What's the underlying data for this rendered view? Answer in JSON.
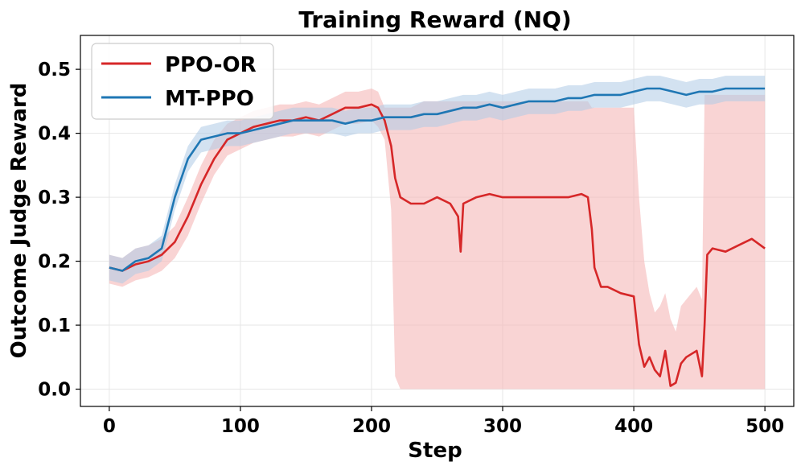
{
  "chart_data": {
    "type": "line",
    "title": "Training Reward (NQ)",
    "xlabel": "Step",
    "ylabel": "Outcome Judge Reward",
    "xlim": [
      -22,
      522
    ],
    "ylim": [
      -0.027,
      0.553
    ],
    "xticks": [
      0,
      100,
      200,
      300,
      400,
      500
    ],
    "yticks": [
      0.0,
      0.1,
      0.2,
      0.3,
      0.4,
      0.5
    ],
    "xtick_labels": [
      "0",
      "100",
      "200",
      "300",
      "400",
      "500"
    ],
    "ytick_labels": [
      "0.0",
      "0.1",
      "0.2",
      "0.3",
      "0.4",
      "0.5"
    ],
    "grid": true,
    "legend_position": "top-left",
    "series": [
      {
        "name": "PPO-OR",
        "color": "#d62728",
        "band_color": "#f5b8b8",
        "x": [
          0,
          10,
          20,
          30,
          40,
          50,
          60,
          70,
          80,
          90,
          100,
          110,
          120,
          130,
          140,
          150,
          160,
          170,
          180,
          190,
          200,
          205,
          210,
          215,
          218,
          222,
          230,
          240,
          250,
          260,
          266,
          268,
          270,
          280,
          290,
          300,
          310,
          320,
          330,
          340,
          350,
          360,
          365,
          368,
          370,
          375,
          380,
          390,
          400,
          404,
          408,
          412,
          416,
          420,
          424,
          428,
          432,
          436,
          440,
          444,
          448,
          452,
          454,
          456,
          460,
          470,
          480,
          490,
          500
        ],
        "values": [
          0.19,
          0.185,
          0.195,
          0.2,
          0.21,
          0.23,
          0.27,
          0.32,
          0.36,
          0.39,
          0.4,
          0.41,
          0.415,
          0.42,
          0.42,
          0.425,
          0.42,
          0.43,
          0.44,
          0.44,
          0.445,
          0.44,
          0.42,
          0.38,
          0.33,
          0.3,
          0.29,
          0.29,
          0.3,
          0.29,
          0.27,
          0.215,
          0.29,
          0.3,
          0.305,
          0.3,
          0.3,
          0.3,
          0.3,
          0.3,
          0.3,
          0.305,
          0.3,
          0.25,
          0.19,
          0.16,
          0.16,
          0.15,
          0.145,
          0.07,
          0.035,
          0.05,
          0.03,
          0.02,
          0.06,
          0.005,
          0.01,
          0.04,
          0.05,
          0.055,
          0.06,
          0.02,
          0.1,
          0.21,
          0.22,
          0.215,
          0.225,
          0.235,
          0.22
        ],
        "band_lower": [
          0.165,
          0.16,
          0.17,
          0.175,
          0.185,
          0.205,
          0.24,
          0.29,
          0.335,
          0.365,
          0.375,
          0.385,
          0.39,
          0.395,
          0.395,
          0.4,
          0.395,
          0.405,
          0.415,
          0.415,
          0.42,
          0.41,
          0.39,
          0.28,
          0.02,
          0.0,
          0.0,
          0.0,
          0.0,
          0.0,
          0.0,
          0.0,
          0.0,
          0.0,
          0.0,
          0.0,
          0.0,
          0.0,
          0.0,
          0.0,
          0.0,
          0.0,
          0.0,
          0.0,
          0.0,
          0.0,
          0.0,
          0.0,
          0.0,
          0.0,
          0.0,
          0.0,
          0.0,
          0.0,
          0.0,
          0.0,
          0.0,
          0.0,
          0.0,
          0.0,
          0.0,
          0.0,
          0.0,
          0.0,
          0.0,
          0.0,
          0.0,
          0.0,
          0.0
        ],
        "band_upper": [
          0.21,
          0.205,
          0.22,
          0.225,
          0.235,
          0.255,
          0.3,
          0.35,
          0.39,
          0.415,
          0.425,
          0.435,
          0.44,
          0.445,
          0.445,
          0.45,
          0.445,
          0.455,
          0.465,
          0.465,
          0.47,
          0.465,
          0.44,
          0.44,
          0.44,
          0.44,
          0.44,
          0.45,
          0.45,
          0.45,
          0.45,
          0.45,
          0.45,
          0.45,
          0.45,
          0.45,
          0.45,
          0.45,
          0.45,
          0.45,
          0.45,
          0.45,
          0.45,
          0.44,
          0.44,
          0.44,
          0.44,
          0.44,
          0.44,
          0.3,
          0.2,
          0.15,
          0.12,
          0.13,
          0.15,
          0.11,
          0.09,
          0.13,
          0.14,
          0.15,
          0.16,
          0.14,
          0.46,
          0.46,
          0.46,
          0.46,
          0.46,
          0.46,
          0.46
        ]
      },
      {
        "name": "MT-PPO",
        "color": "#1f77b4",
        "band_color": "#aecbe6",
        "x": [
          0,
          10,
          20,
          30,
          40,
          50,
          60,
          70,
          80,
          90,
          100,
          110,
          120,
          130,
          140,
          150,
          160,
          170,
          180,
          190,
          200,
          210,
          220,
          230,
          240,
          250,
          260,
          270,
          280,
          290,
          300,
          310,
          320,
          330,
          340,
          350,
          360,
          370,
          380,
          390,
          400,
          410,
          420,
          430,
          440,
          450,
          460,
          470,
          480,
          490,
          500
        ],
        "values": [
          0.19,
          0.185,
          0.2,
          0.205,
          0.22,
          0.3,
          0.36,
          0.39,
          0.395,
          0.4,
          0.4,
          0.405,
          0.41,
          0.415,
          0.42,
          0.42,
          0.42,
          0.42,
          0.415,
          0.42,
          0.42,
          0.425,
          0.425,
          0.425,
          0.43,
          0.43,
          0.435,
          0.44,
          0.44,
          0.445,
          0.44,
          0.445,
          0.45,
          0.45,
          0.45,
          0.455,
          0.455,
          0.46,
          0.46,
          0.46,
          0.465,
          0.47,
          0.47,
          0.465,
          0.46,
          0.465,
          0.465,
          0.47,
          0.47,
          0.47,
          0.47
        ],
        "band_lower": [
          0.17,
          0.165,
          0.18,
          0.185,
          0.2,
          0.28,
          0.34,
          0.37,
          0.375,
          0.38,
          0.38,
          0.385,
          0.39,
          0.395,
          0.4,
          0.4,
          0.4,
          0.4,
          0.395,
          0.4,
          0.4,
          0.405,
          0.405,
          0.405,
          0.41,
          0.41,
          0.415,
          0.42,
          0.42,
          0.425,
          0.42,
          0.425,
          0.43,
          0.43,
          0.43,
          0.435,
          0.435,
          0.44,
          0.44,
          0.44,
          0.445,
          0.45,
          0.45,
          0.445,
          0.44,
          0.445,
          0.445,
          0.45,
          0.45,
          0.45,
          0.45
        ],
        "band_upper": [
          0.21,
          0.205,
          0.22,
          0.225,
          0.24,
          0.32,
          0.38,
          0.41,
          0.415,
          0.42,
          0.42,
          0.425,
          0.43,
          0.435,
          0.44,
          0.44,
          0.44,
          0.44,
          0.435,
          0.44,
          0.44,
          0.445,
          0.445,
          0.445,
          0.45,
          0.45,
          0.455,
          0.46,
          0.46,
          0.465,
          0.46,
          0.465,
          0.47,
          0.47,
          0.47,
          0.475,
          0.475,
          0.48,
          0.48,
          0.48,
          0.485,
          0.49,
          0.49,
          0.485,
          0.48,
          0.485,
          0.485,
          0.49,
          0.49,
          0.49,
          0.49
        ]
      }
    ]
  }
}
